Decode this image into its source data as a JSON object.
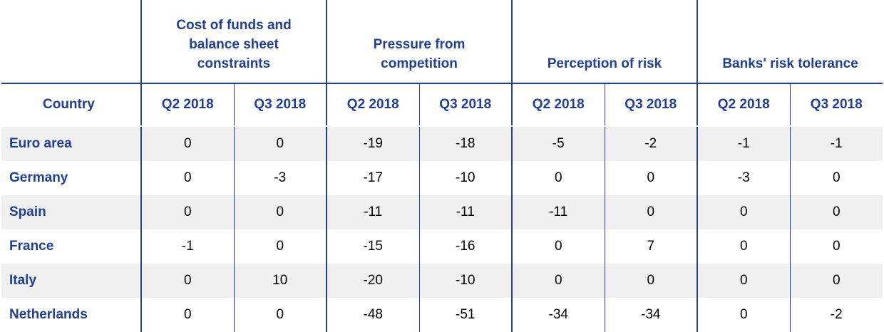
{
  "header": {
    "groups": [
      "Cost of funds and balance sheet constraints",
      "Pressure from competition",
      "Perception of risk",
      "Banks' risk tolerance"
    ],
    "country_label": "Country",
    "periods": [
      "Q2 2018",
      "Q3 2018",
      "Q2 2018",
      "Q3 2018",
      "Q2 2018",
      "Q3 2018",
      "Q2 2018",
      "Q3 2018"
    ]
  },
  "rows": [
    {
      "country": "Euro area",
      "values": [
        "0",
        "0",
        "-19",
        "-18",
        "-5",
        "-2",
        "-1",
        "-1"
      ]
    },
    {
      "country": "Germany",
      "values": [
        "0",
        "-3",
        "-17",
        "-10",
        "0",
        "0",
        "-3",
        "0"
      ]
    },
    {
      "country": "Spain",
      "values": [
        "0",
        "0",
        "-11",
        "-11",
        "-11",
        "0",
        "0",
        "0"
      ]
    },
    {
      "country": "France",
      "values": [
        "-1",
        "0",
        "-15",
        "-16",
        "0",
        "7",
        "0",
        "0"
      ]
    },
    {
      "country": "Italy",
      "values": [
        "0",
        "10",
        "-20",
        "-10",
        "0",
        "0",
        "0",
        "0"
      ]
    },
    {
      "country": "Netherlands",
      "values": [
        "0",
        "0",
        "-48",
        "-51",
        "-34",
        "-34",
        "0",
        "-2"
      ]
    }
  ],
  "colors": {
    "accent": "#1f3f99",
    "row_shade": "#f0f0f0"
  }
}
